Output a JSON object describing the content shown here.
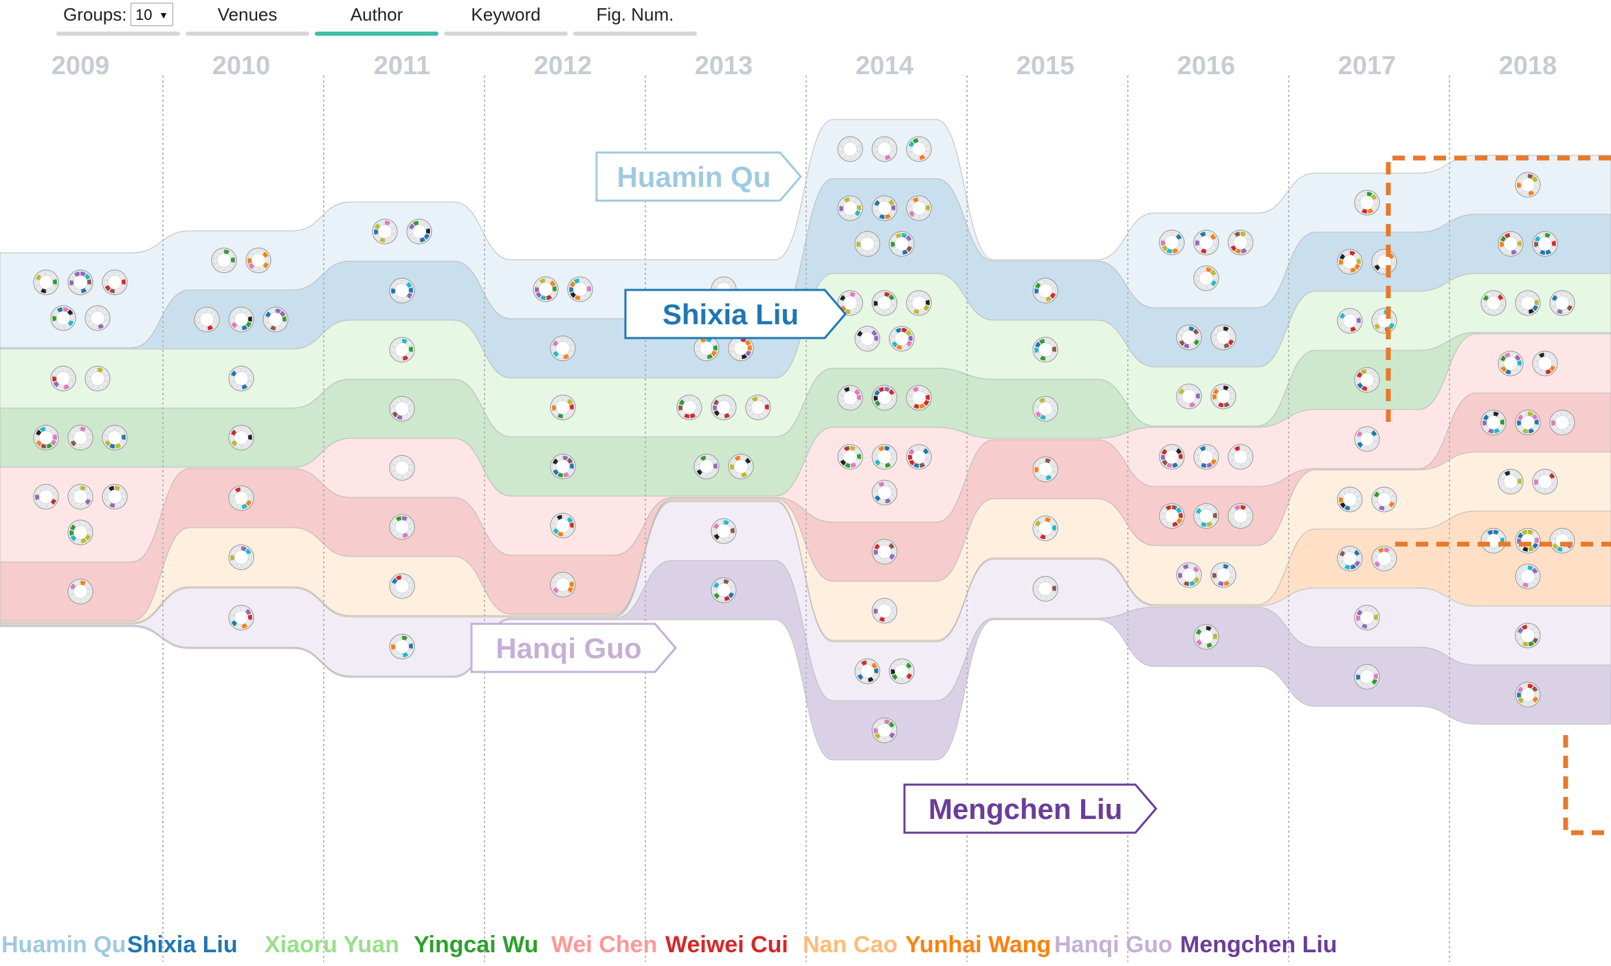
{
  "toolbar": {
    "groups_label": "Groups:",
    "groups_value": "10",
    "tabs": [
      {
        "label": "Venues",
        "active": false
      },
      {
        "label": "Author",
        "active": true
      },
      {
        "label": "Keyword",
        "active": false
      },
      {
        "label": "Fig. Num.",
        "active": false
      }
    ]
  },
  "callouts": [
    {
      "label": "Huamin Qu",
      "color": "#9ecae1",
      "year": "2014",
      "author_index": 0
    },
    {
      "label": "Shixia Liu",
      "color": "#1f77b4",
      "year": "2014",
      "author_index": 1
    },
    {
      "label": "Hanqi Guo",
      "color": "#c5b0d5",
      "year": "2013",
      "author_index": 8
    },
    {
      "label": "Mengchen Liu",
      "color": "#6a3d9a",
      "year": "2016",
      "author_index": 9
    }
  ],
  "highlight_color": "#e8782a",
  "chart_data": {
    "type": "stream",
    "title": "",
    "xlabel": "",
    "ylabel": "",
    "x": [
      "2009",
      "2010",
      "2011",
      "2012",
      "2013",
      "2014",
      "2015",
      "2016",
      "2017",
      "2018"
    ],
    "series": [
      {
        "name": "Huamin Qu",
        "color": "#9ecae1",
        "values": [
          5,
          2,
          2,
          2,
          1,
          3,
          0,
          4,
          1,
          1
        ]
      },
      {
        "name": "Shixia Liu",
        "color": "#1f77b4",
        "values": [
          0,
          3,
          1,
          1,
          2,
          5,
          1,
          2,
          2,
          2
        ]
      },
      {
        "name": "Xiaoru Yuan",
        "color": "#98df8a",
        "values": [
          2,
          1,
          1,
          1,
          3,
          5,
          1,
          2,
          2,
          3
        ]
      },
      {
        "name": "Yingcai Wu",
        "color": "#2ca02c",
        "values": [
          3,
          1,
          1,
          1,
          2,
          3,
          1,
          0,
          1,
          0
        ]
      },
      {
        "name": "Wei Chen",
        "color": "#ff9896",
        "values": [
          4,
          0,
          1,
          1,
          0,
          4,
          0,
          3,
          1,
          2
        ]
      },
      {
        "name": "Weiwei Cui",
        "color": "#d62728",
        "values": [
          1,
          1,
          1,
          1,
          0,
          1,
          1,
          3,
          0,
          3
        ]
      },
      {
        "name": "Nan Cao",
        "color": "#ffbb78",
        "values": [
          0,
          1,
          1,
          0,
          0,
          1,
          1,
          2,
          2,
          2
        ]
      },
      {
        "name": "Yunhai Wang",
        "color": "#ff7f0e",
        "values": [
          0,
          0,
          0,
          0,
          0,
          0,
          0,
          0,
          2,
          4
        ]
      },
      {
        "name": "Hanqi Guo",
        "color": "#c5b0d5",
        "values": [
          0,
          1,
          1,
          0,
          1,
          2,
          1,
          0,
          1,
          1
        ]
      },
      {
        "name": "Mengchen Liu",
        "color": "#6a3d9a",
        "values": [
          0,
          0,
          0,
          0,
          1,
          1,
          0,
          1,
          1,
          1
        ]
      }
    ]
  }
}
